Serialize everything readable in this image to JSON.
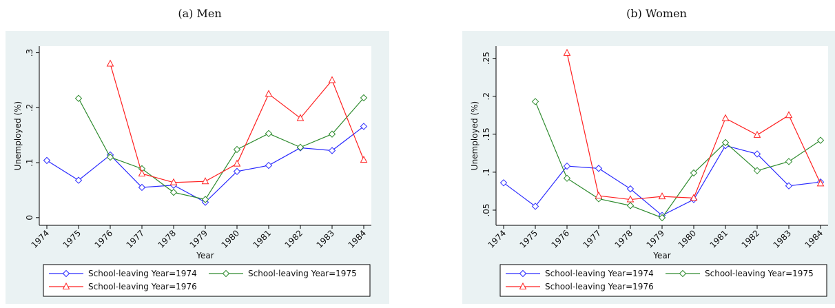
{
  "chart_data": [
    {
      "type": "line",
      "title": "(a) Men",
      "ylabel": "Unemployed (%)",
      "xlabel": "Year",
      "categories": [
        "1974",
        "1975",
        "1976",
        "1977",
        "1978",
        "1979",
        "1980",
        "1981",
        "1982",
        "1983",
        "1984"
      ],
      "series": [
        {
          "name": "School-leaving Year=1974",
          "color": "#2a2aff",
          "marker": "diamond",
          "values": [
            0.104,
            0.068,
            0.114,
            0.055,
            0.059,
            0.028,
            0.084,
            0.095,
            0.127,
            0.122,
            0.166
          ]
        },
        {
          "name": "School-leaving Year=1975",
          "color": "#2e8b2e",
          "marker": "diamond",
          "values": [
            null,
            0.217,
            0.11,
            0.089,
            0.046,
            0.033,
            0.124,
            0.153,
            0.128,
            0.152,
            0.218
          ]
        },
        {
          "name": "School-leaving Year=1976",
          "color": "#ff2020",
          "marker": "triangle",
          "values": [
            null,
            null,
            0.28,
            0.08,
            0.064,
            0.066,
            0.098,
            0.225,
            0.181,
            0.25,
            0.105
          ]
        }
      ],
      "ylim": [
        -0.014,
        0.312
      ],
      "yticks": [
        0,
        {
          "value": 0.1,
          "label": ".1"
        },
        {
          "value": 0.2,
          "label": ".2"
        },
        {
          "value": 0.3,
          "label": ".3"
        }
      ],
      "legend": "bottom"
    },
    {
      "type": "line",
      "title": "(b) Women",
      "ylabel": "Unemployed (%)",
      "xlabel": "Year",
      "categories": [
        "1974",
        "1975",
        "1976",
        "1977",
        "1978",
        "1979",
        "1980",
        "1981",
        "1982",
        "1983",
        "1984"
      ],
      "series": [
        {
          "name": "School-leaving Year=1974",
          "color": "#2a2aff",
          "marker": "diamond",
          "values": [
            0.086,
            0.055,
            0.108,
            0.105,
            0.078,
            0.043,
            0.064,
            0.135,
            0.124,
            0.082,
            0.087
          ]
        },
        {
          "name": "School-leaving Year=1975",
          "color": "#2e8b2e",
          "marker": "diamond",
          "values": [
            null,
            0.193,
            0.092,
            0.065,
            0.056,
            0.04,
            0.099,
            0.139,
            0.102,
            0.114,
            0.142
          ]
        },
        {
          "name": "School-leaving Year=1976",
          "color": "#ff2020",
          "marker": "triangle",
          "values": [
            null,
            null,
            0.257,
            0.069,
            0.064,
            0.068,
            0.066,
            0.171,
            0.149,
            0.175,
            0.085
          ]
        }
      ],
      "ylim": [
        0.03,
        0.266
      ],
      "yticks": [
        {
          "value": 0.05,
          "label": ".05"
        },
        {
          "value": 0.1,
          "label": ".1"
        },
        {
          "value": 0.15,
          "label": ".15"
        },
        {
          "value": 0.2,
          "label": ".2"
        },
        {
          "value": 0.25,
          "label": ".25"
        }
      ],
      "legend": "bottom"
    }
  ]
}
